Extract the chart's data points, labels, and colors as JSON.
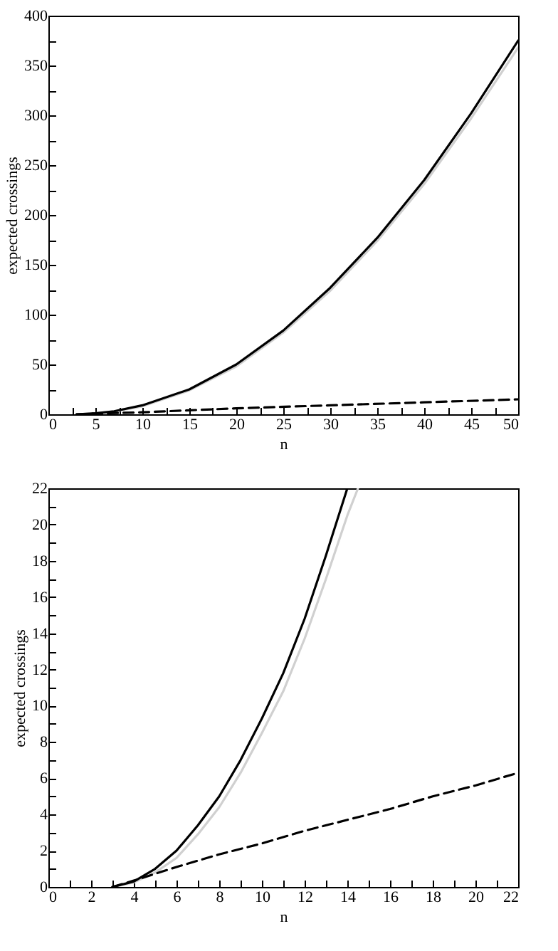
{
  "chart_data": [
    {
      "type": "line",
      "xlabel": "n",
      "ylabel": "expected crossings",
      "xlim": [
        0,
        50
      ],
      "ylim": [
        0,
        400
      ],
      "xticks": [
        0,
        {
          "value": 2.5,
          "label": null
        },
        5,
        {
          "value": 7.5,
          "label": null
        },
        10,
        {
          "value": 12.5,
          "label": null
        },
        15,
        {
          "value": 17.5,
          "label": null
        },
        20,
        {
          "value": 22.5,
          "label": null
        },
        25,
        {
          "value": 27.5,
          "label": null
        },
        30,
        {
          "value": 32.5,
          "label": null
        },
        35,
        {
          "value": 37.5,
          "label": null
        },
        40,
        {
          "value": 42.5,
          "label": null
        },
        45,
        {
          "value": 47.5,
          "label": null
        },
        50
      ],
      "yticks": [
        0,
        {
          "value": 25,
          "label": null
        },
        50,
        {
          "value": 75,
          "label": null
        },
        100,
        {
          "value": 125,
          "label": null
        },
        150,
        {
          "value": 175,
          "label": null
        },
        200,
        {
          "value": 225,
          "label": null
        },
        250,
        {
          "value": 275,
          "label": null
        },
        300,
        {
          "value": 325,
          "label": null
        },
        350,
        {
          "value": 375,
          "label": null
        },
        400
      ],
      "grid": false,
      "marker": "none",
      "series": [
        {
          "color": "#d0d0d0",
          "line_style": "solid",
          "x": [
            3,
            5,
            7,
            10,
            15,
            20,
            25,
            30,
            35,
            40,
            45,
            50
          ],
          "values": [
            0,
            1,
            3,
            8,
            24,
            48,
            82,
            124,
            174,
            231,
            297,
            368
          ]
        },
        {
          "color": "#000000",
          "line_style": "solid",
          "x": [
            3,
            5,
            7,
            10,
            15,
            20,
            25,
            30,
            35,
            40,
            45,
            50
          ],
          "values": [
            0,
            1,
            3,
            9,
            25,
            50,
            84,
            127,
            177,
            235,
            302,
            375
          ]
        },
        {
          "color": "#000000",
          "line_style": "dashed",
          "x": [
            3,
            6,
            10,
            20,
            30,
            40,
            50
          ],
          "values": [
            0,
            1,
            2,
            6,
            9,
            12,
            15
          ]
        }
      ]
    },
    {
      "type": "line",
      "xlabel": "n",
      "ylabel": "expected crossings",
      "xlim": [
        0,
        22
      ],
      "ylim": [
        0,
        22
      ],
      "xticks": [
        0,
        {
          "value": 1,
          "label": null
        },
        2,
        {
          "value": 3,
          "label": null
        },
        4,
        {
          "value": 5,
          "label": null
        },
        6,
        {
          "value": 7,
          "label": null
        },
        8,
        {
          "value": 9,
          "label": null
        },
        10,
        {
          "value": 11,
          "label": null
        },
        12,
        {
          "value": 13,
          "label": null
        },
        14,
        {
          "value": 15,
          "label": null
        },
        16,
        {
          "value": 17,
          "label": null
        },
        18,
        {
          "value": 19,
          "label": null
        },
        20,
        {
          "value": 21,
          "label": null
        },
        22
      ],
      "yticks": [
        0,
        {
          "value": 1,
          "label": null
        },
        2,
        {
          "value": 3,
          "label": null
        },
        4,
        {
          "value": 5,
          "label": null
        },
        6,
        {
          "value": 7,
          "label": null
        },
        8,
        {
          "value": 9,
          "label": null
        },
        10,
        {
          "value": 11,
          "label": null
        },
        12,
        {
          "value": 13,
          "label": null
        },
        14,
        {
          "value": 15,
          "label": null
        },
        16,
        {
          "value": 17,
          "label": null
        },
        18,
        {
          "value": 19,
          "label": null
        },
        20,
        {
          "value": 21,
          "label": null
        },
        22
      ],
      "grid": false,
      "marker": "none",
      "series": [
        {
          "color": "#d0d0d0",
          "line_style": "solid",
          "x": [
            3,
            4,
            5,
            6,
            7,
            8,
            9,
            10,
            11,
            12,
            13,
            14,
            14.5
          ],
          "values": [
            0,
            0.25,
            0.8,
            1.6,
            2.9,
            4.4,
            6.3,
            8.5,
            10.8,
            13.7,
            17,
            20.5,
            22
          ]
        },
        {
          "color": "#000000",
          "line_style": "solid",
          "x": [
            3,
            4,
            5,
            6,
            7,
            8,
            9,
            10,
            11,
            12,
            13,
            14
          ],
          "values": [
            0,
            0.3,
            1,
            2,
            3.4,
            5,
            7,
            9.3,
            11.8,
            14.8,
            18.3,
            22
          ]
        },
        {
          "color": "#000000",
          "line_style": "dashed",
          "x": [
            3,
            4,
            6,
            8,
            10,
            12,
            14,
            16,
            18,
            20,
            22
          ],
          "values": [
            0,
            0.35,
            1.1,
            1.8,
            2.4,
            3.1,
            3.7,
            4.3,
            5,
            5.6,
            6.3
          ]
        }
      ]
    }
  ]
}
